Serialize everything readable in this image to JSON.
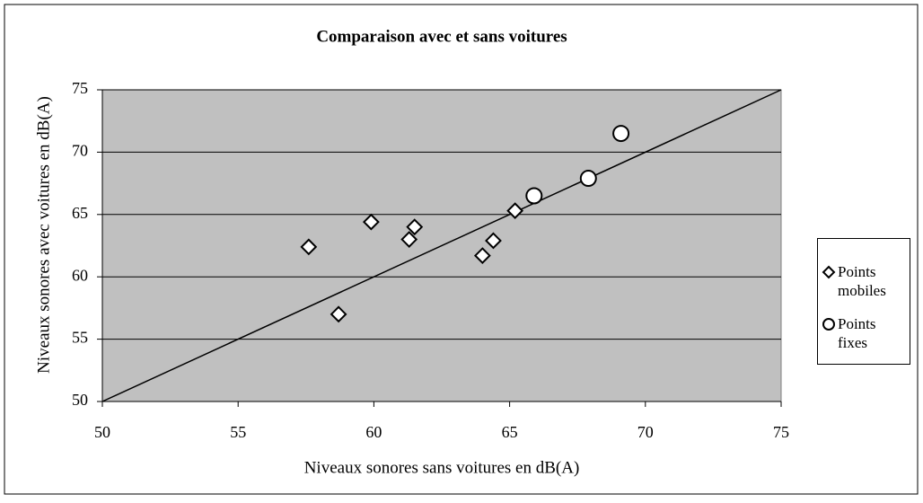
{
  "chart_data": {
    "type": "scatter",
    "title": "Comparaison avec et sans voitures",
    "xlabel": "Niveaux sonores sans voitures en dB(A)",
    "ylabel": "Niveaux sonores avec voitures en dB(A)",
    "xlim": [
      50,
      75
    ],
    "ylim": [
      50,
      75
    ],
    "xticks": [
      50,
      55,
      60,
      65,
      70,
      75
    ],
    "yticks": [
      50,
      55,
      60,
      65,
      70,
      75
    ],
    "grid": true,
    "legend": "right",
    "plot_background": "#c0c0c0",
    "series": [
      {
        "name": "Points mobiles",
        "marker": "diamond",
        "color": "#ffffff",
        "x": [
          57.6,
          58.7,
          59.9,
          61.3,
          61.5,
          64.0,
          64.4,
          65.2
        ],
        "values": [
          62.4,
          57.0,
          64.4,
          63.0,
          64.0,
          61.7,
          62.9,
          65.3
        ]
      },
      {
        "name": "Points fixes",
        "marker": "circle",
        "color": "#ffffff",
        "x": [
          65.9,
          67.9,
          69.1
        ],
        "values": [
          66.5,
          67.9,
          71.5
        ]
      }
    ],
    "reference_line": {
      "x": [
        50,
        75
      ],
      "values": [
        50,
        75
      ],
      "color": "#000000"
    }
  }
}
